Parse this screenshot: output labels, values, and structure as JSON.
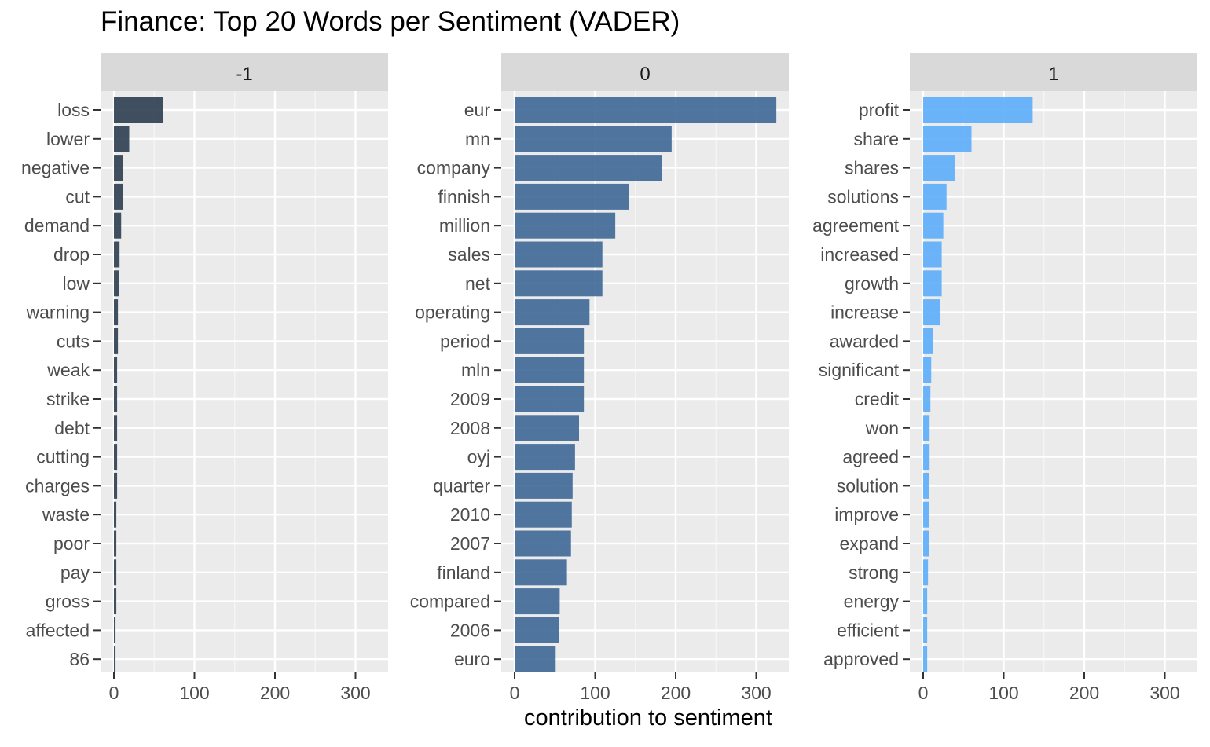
{
  "chart_data": {
    "type": "bar",
    "orientation": "horizontal",
    "title": "Finance: Top 20 Words per Sentiment (VADER)",
    "xlabel": "contribution to sentiment",
    "ylabel": "",
    "xlim": [
      0,
      340
    ],
    "x_ticks": [
      0,
      100,
      200,
      300
    ],
    "grid": true,
    "legend": "none",
    "panels": [
      {
        "facet_label": "-1",
        "color": "#2C3E50",
        "categories": [
          "loss",
          "lower",
          "negative",
          "cut",
          "demand",
          "drop",
          "low",
          "warning",
          "cuts",
          "weak",
          "strike",
          "debt",
          "cutting",
          "charges",
          "waste",
          "poor",
          "pay",
          "gross",
          "affected",
          "86"
        ],
        "values": [
          61,
          19,
          11,
          11,
          9,
          7,
          6,
          5,
          5,
          4,
          4,
          4,
          4,
          4,
          3,
          3,
          3,
          3,
          2,
          2
        ]
      },
      {
        "facet_label": "0",
        "color": "#3E6897",
        "categories": [
          "eur",
          "mn",
          "company",
          "finnish",
          "million",
          "sales",
          "net",
          "operating",
          "period",
          "mln",
          "2009",
          "2008",
          "oyj",
          "quarter",
          "2010",
          "2007",
          "finland",
          "compared",
          "2006",
          "euro"
        ],
        "values": [
          325,
          195,
          183,
          142,
          125,
          109,
          109,
          93,
          86,
          86,
          86,
          80,
          75,
          72,
          71,
          70,
          65,
          56,
          55,
          51
        ]
      },
      {
        "facet_label": "1",
        "color": "#5DADF9",
        "categories": [
          "profit",
          "share",
          "shares",
          "solutions",
          "agreement",
          "increased",
          "growth",
          "increase",
          "awarded",
          "significant",
          "credit",
          "won",
          "agreed",
          "solution",
          "improve",
          "expand",
          "strong",
          "energy",
          "efficient",
          "approved"
        ],
        "values": [
          136,
          60,
          39,
          29,
          25,
          23,
          23,
          21,
          12,
          10,
          9,
          8,
          8,
          7,
          7,
          7,
          6,
          5,
          5,
          5
        ]
      }
    ]
  }
}
